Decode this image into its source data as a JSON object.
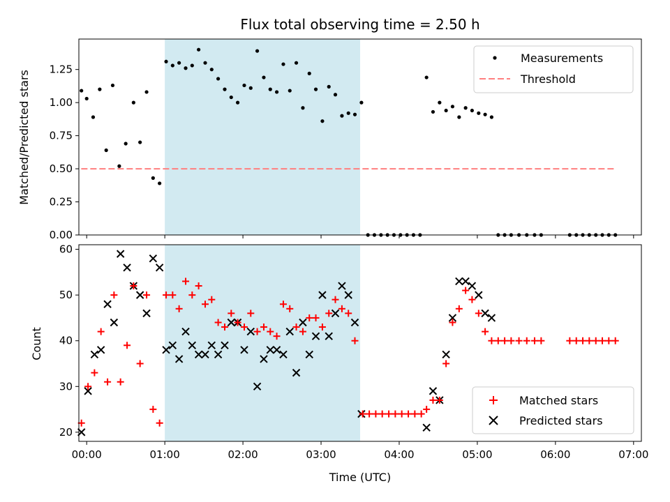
{
  "chart_data": [
    {
      "type": "scatter",
      "title": "Flux total observing time = 2.50 h",
      "xlabel": "",
      "ylabel": "Matched/Predicted stars",
      "xlim": [
        -0.1,
        7.1
      ],
      "ylim": [
        0.0,
        1.48
      ],
      "yticks": [
        0.0,
        0.25,
        0.5,
        0.75,
        1.0,
        1.25
      ],
      "ytick_labels": [
        "0.00",
        "0.25",
        "0.50",
        "0.75",
        "1.00",
        "1.25"
      ],
      "shaded_region": {
        "x_start": 1.0,
        "x_end": 3.5,
        "color": "#add8e6"
      },
      "threshold": {
        "name": "Threshold",
        "y": 0.5,
        "x_start": -0.07,
        "x_end": 6.75,
        "color": "#ff7f7f",
        "style": "dashed"
      },
      "series": [
        {
          "name": "Measurements",
          "color": "#000000",
          "marker": "dot",
          "points": [
            [
              -0.067,
              1.09
            ],
            [
              0.0,
              1.03
            ],
            [
              0.083,
              0.89
            ],
            [
              0.167,
              1.1
            ],
            [
              0.25,
              0.64
            ],
            [
              0.333,
              1.13
            ],
            [
              0.417,
              0.52
            ],
            [
              0.5,
              0.69
            ],
            [
              0.6,
              1.0
            ],
            [
              0.683,
              0.7
            ],
            [
              0.767,
              1.08
            ],
            [
              0.85,
              0.43
            ],
            [
              0.933,
              0.39
            ],
            [
              1.017,
              1.31
            ],
            [
              1.1,
              1.28
            ],
            [
              1.183,
              1.3
            ],
            [
              1.267,
              1.26
            ],
            [
              1.35,
              1.28
            ],
            [
              1.433,
              1.4
            ],
            [
              1.517,
              1.3
            ],
            [
              1.6,
              1.25
            ],
            [
              1.683,
              1.18
            ],
            [
              1.767,
              1.1
            ],
            [
              1.85,
              1.04
            ],
            [
              1.933,
              1.0
            ],
            [
              2.017,
              1.13
            ],
            [
              2.1,
              1.11
            ],
            [
              2.183,
              1.39
            ],
            [
              2.267,
              1.19
            ],
            [
              2.35,
              1.1
            ],
            [
              2.433,
              1.08
            ],
            [
              2.517,
              1.29
            ],
            [
              2.6,
              1.09
            ],
            [
              2.683,
              1.3
            ],
            [
              2.767,
              0.96
            ],
            [
              2.85,
              1.22
            ],
            [
              2.933,
              1.1
            ],
            [
              3.017,
              0.86
            ],
            [
              3.1,
              1.12
            ],
            [
              3.183,
              1.06
            ],
            [
              3.267,
              0.9
            ],
            [
              3.35,
              0.92
            ],
            [
              3.433,
              0.91
            ],
            [
              3.517,
              1.0
            ],
            [
              3.6,
              0.0
            ],
            [
              3.683,
              0.0
            ],
            [
              3.767,
              0.0
            ],
            [
              3.85,
              0.0
            ],
            [
              3.933,
              0.0
            ],
            [
              4.017,
              0.0
            ],
            [
              4.1,
              0.0
            ],
            [
              4.183,
              0.0
            ],
            [
              4.267,
              0.0
            ],
            [
              4.35,
              1.19
            ],
            [
              4.433,
              0.93
            ],
            [
              4.517,
              1.0
            ],
            [
              4.6,
              0.94
            ],
            [
              4.683,
              0.97
            ],
            [
              4.767,
              0.89
            ],
            [
              4.85,
              0.96
            ],
            [
              4.933,
              0.94
            ],
            [
              5.017,
              0.92
            ],
            [
              5.1,
              0.91
            ],
            [
              5.183,
              0.89
            ],
            [
              5.267,
              0.0
            ],
            [
              5.35,
              0.0
            ],
            [
              5.433,
              0.0
            ],
            [
              5.533,
              0.0
            ],
            [
              5.633,
              0.0
            ],
            [
              5.733,
              0.0
            ],
            [
              5.817,
              0.0
            ],
            [
              6.183,
              0.0
            ],
            [
              6.267,
              0.0
            ],
            [
              6.35,
              0.0
            ],
            [
              6.433,
              0.0
            ],
            [
              6.517,
              0.0
            ],
            [
              6.6,
              0.0
            ],
            [
              6.683,
              0.0
            ],
            [
              6.767,
              0.0
            ]
          ]
        }
      ],
      "legend": {
        "placement": "top-right",
        "entries": [
          "Measurements",
          "Threshold"
        ]
      }
    },
    {
      "type": "scatter",
      "title": "",
      "xlabel": "Time (UTC)",
      "ylabel": "Count",
      "xlim": [
        -0.1,
        7.1
      ],
      "ylim": [
        18.0,
        61.0
      ],
      "yticks": [
        20,
        30,
        40,
        50,
        60
      ],
      "ytick_labels": [
        "20",
        "30",
        "40",
        "50",
        "60"
      ],
      "xticks": [
        0,
        1,
        2,
        3,
        4,
        5,
        6,
        7
      ],
      "xtick_labels": [
        "00:00",
        "01:00",
        "02:00",
        "03:00",
        "04:00",
        "05:00",
        "06:00",
        "07:00"
      ],
      "shaded_region": {
        "x_start": 1.0,
        "x_end": 3.5,
        "color": "#add8e6"
      },
      "series": [
        {
          "name": "Matched stars",
          "color": "#ff0000",
          "marker": "plus",
          "points": [
            [
              -0.067,
              22
            ],
            [
              0.017,
              30
            ],
            [
              0.1,
              33
            ],
            [
              0.183,
              42
            ],
            [
              0.267,
              31
            ],
            [
              0.35,
              50
            ],
            [
              0.433,
              31
            ],
            [
              0.517,
              39
            ],
            [
              0.6,
              52
            ],
            [
              0.683,
              35
            ],
            [
              0.767,
              50
            ],
            [
              0.85,
              25
            ],
            [
              0.933,
              22
            ],
            [
              1.017,
              50
            ],
            [
              1.1,
              50
            ],
            [
              1.183,
              47
            ],
            [
              1.267,
              53
            ],
            [
              1.35,
              50
            ],
            [
              1.433,
              52
            ],
            [
              1.517,
              48
            ],
            [
              1.6,
              49
            ],
            [
              1.683,
              44
            ],
            [
              1.767,
              43
            ],
            [
              1.85,
              46
            ],
            [
              1.933,
              44
            ],
            [
              2.017,
              43
            ],
            [
              2.1,
              46
            ],
            [
              2.183,
              42
            ],
            [
              2.267,
              43
            ],
            [
              2.35,
              42
            ],
            [
              2.433,
              41
            ],
            [
              2.517,
              48
            ],
            [
              2.6,
              47
            ],
            [
              2.683,
              43
            ],
            [
              2.767,
              42
            ],
            [
              2.85,
              45
            ],
            [
              2.933,
              45
            ],
            [
              3.017,
              43
            ],
            [
              3.1,
              46
            ],
            [
              3.183,
              49
            ],
            [
              3.267,
              47
            ],
            [
              3.35,
              46
            ],
            [
              3.433,
              40
            ],
            [
              3.533,
              24
            ],
            [
              3.617,
              24
            ],
            [
              3.7,
              24
            ],
            [
              3.783,
              24
            ],
            [
              3.867,
              24
            ],
            [
              3.95,
              24
            ],
            [
              4.033,
              24
            ],
            [
              4.117,
              24
            ],
            [
              4.2,
              24
            ],
            [
              4.283,
              24
            ],
            [
              4.35,
              25
            ],
            [
              4.433,
              27
            ],
            [
              4.517,
              27
            ],
            [
              4.6,
              35
            ],
            [
              4.683,
              44
            ],
            [
              4.767,
              47
            ],
            [
              4.85,
              51
            ],
            [
              4.933,
              49
            ],
            [
              5.017,
              46
            ],
            [
              5.1,
              42
            ],
            [
              5.183,
              40
            ],
            [
              5.267,
              40
            ],
            [
              5.35,
              40
            ],
            [
              5.433,
              40
            ],
            [
              5.533,
              40
            ],
            [
              5.633,
              40
            ],
            [
              5.733,
              40
            ],
            [
              5.817,
              40
            ],
            [
              6.183,
              40
            ],
            [
              6.267,
              40
            ],
            [
              6.35,
              40
            ],
            [
              6.433,
              40
            ],
            [
              6.517,
              40
            ],
            [
              6.6,
              40
            ],
            [
              6.683,
              40
            ],
            [
              6.767,
              40
            ]
          ]
        },
        {
          "name": "Predicted stars",
          "color": "#000000",
          "marker": "x",
          "points": [
            [
              -0.067,
              20
            ],
            [
              0.017,
              29
            ],
            [
              0.1,
              37
            ],
            [
              0.183,
              38
            ],
            [
              0.267,
              48
            ],
            [
              0.35,
              44
            ],
            [
              0.433,
              59
            ],
            [
              0.517,
              56
            ],
            [
              0.6,
              52
            ],
            [
              0.683,
              50
            ],
            [
              0.767,
              46
            ],
            [
              0.85,
              58
            ],
            [
              0.933,
              56
            ],
            [
              1.017,
              38
            ],
            [
              1.1,
              39
            ],
            [
              1.183,
              36
            ],
            [
              1.267,
              42
            ],
            [
              1.35,
              39
            ],
            [
              1.433,
              37
            ],
            [
              1.517,
              37
            ],
            [
              1.6,
              39
            ],
            [
              1.683,
              37
            ],
            [
              1.767,
              39
            ],
            [
              1.85,
              44
            ],
            [
              1.933,
              44
            ],
            [
              2.017,
              38
            ],
            [
              2.1,
              42
            ],
            [
              2.183,
              30
            ],
            [
              2.267,
              36
            ],
            [
              2.35,
              38
            ],
            [
              2.433,
              38
            ],
            [
              2.517,
              37
            ],
            [
              2.6,
              42
            ],
            [
              2.683,
              33
            ],
            [
              2.767,
              44
            ],
            [
              2.85,
              37
            ],
            [
              2.933,
              41
            ],
            [
              3.017,
              50
            ],
            [
              3.1,
              41
            ],
            [
              3.183,
              46
            ],
            [
              3.267,
              52
            ],
            [
              3.35,
              50
            ],
            [
              3.433,
              44
            ],
            [
              3.517,
              24
            ],
            [
              4.35,
              21
            ],
            [
              4.433,
              29
            ],
            [
              4.517,
              27
            ],
            [
              4.6,
              37
            ],
            [
              4.683,
              45
            ],
            [
              4.767,
              53
            ],
            [
              4.85,
              53
            ],
            [
              4.933,
              52
            ],
            [
              5.017,
              50
            ],
            [
              5.1,
              46
            ],
            [
              5.183,
              45
            ]
          ]
        }
      ],
      "legend": {
        "placement": "bottom-right",
        "entries": [
          "Matched stars",
          "Predicted stars"
        ]
      }
    }
  ]
}
